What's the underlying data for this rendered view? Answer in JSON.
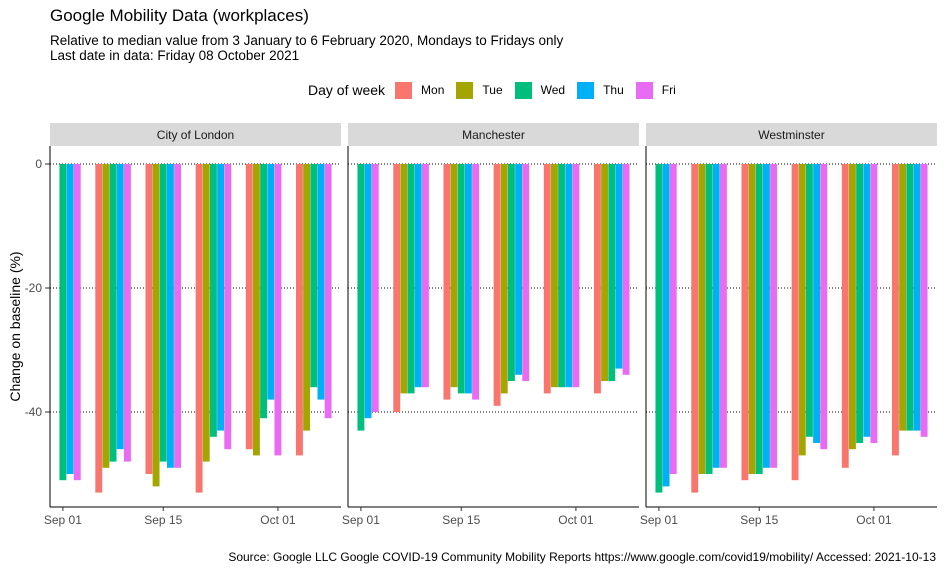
{
  "chart_data": {
    "type": "bar",
    "title": "Google Mobility Data (workplaces)",
    "subtitle_line1": "Relative to median value from 3 January to 6 February 2020, Mondays to Fridays only",
    "subtitle_line2": "Last date in data: Friday 08 October 2021",
    "ylabel": "Change on baseline (%)",
    "xlabel": "",
    "ylim": [
      -55,
      1
    ],
    "yticks": [
      0,
      -20,
      -40
    ],
    "ytick_labels": [
      "0",
      "-20",
      "-40"
    ],
    "xticks": [
      {
        "day": 0,
        "label": "Sep 01"
      },
      {
        "day": 14,
        "label": "Sep 15"
      },
      {
        "day": 30,
        "label": "Oct 01"
      }
    ],
    "date_range": {
      "start": "2021-09-01",
      "end": "2021-10-08"
    },
    "legend": {
      "title": "Day of week",
      "placement": "top",
      "entries": [
        {
          "key": "Mon",
          "label": "Mon",
          "color": "#F8766D"
        },
        {
          "key": "Tue",
          "label": "Tue",
          "color": "#A3A500"
        },
        {
          "key": "Wed",
          "label": "Wed",
          "color": "#00BF7D"
        },
        {
          "key": "Thu",
          "label": "Thu",
          "color": "#00B0F6"
        },
        {
          "key": "Fri",
          "label": "Fri",
          "color": "#E76BF3"
        }
      ]
    },
    "facets": [
      {
        "name": "City of London",
        "points": [
          {
            "day": 0,
            "dow": "Wed",
            "value": -51
          },
          {
            "day": 1,
            "dow": "Thu",
            "value": -50
          },
          {
            "day": 2,
            "dow": "Fri",
            "value": -51
          },
          {
            "day": 5,
            "dow": "Mon",
            "value": -53
          },
          {
            "day": 6,
            "dow": "Tue",
            "value": -49
          },
          {
            "day": 7,
            "dow": "Wed",
            "value": -48
          },
          {
            "day": 8,
            "dow": "Thu",
            "value": -46
          },
          {
            "day": 9,
            "dow": "Fri",
            "value": -48
          },
          {
            "day": 12,
            "dow": "Mon",
            "value": -50
          },
          {
            "day": 13,
            "dow": "Tue",
            "value": -52
          },
          {
            "day": 14,
            "dow": "Wed",
            "value": -48
          },
          {
            "day": 15,
            "dow": "Thu",
            "value": -49
          },
          {
            "day": 16,
            "dow": "Fri",
            "value": -49
          },
          {
            "day": 19,
            "dow": "Mon",
            "value": -53
          },
          {
            "day": 20,
            "dow": "Tue",
            "value": -48
          },
          {
            "day": 21,
            "dow": "Wed",
            "value": -44
          },
          {
            "day": 22,
            "dow": "Thu",
            "value": -43
          },
          {
            "day": 23,
            "dow": "Fri",
            "value": -46
          },
          {
            "day": 26,
            "dow": "Mon",
            "value": -46
          },
          {
            "day": 27,
            "dow": "Tue",
            "value": -47
          },
          {
            "day": 28,
            "dow": "Wed",
            "value": -41
          },
          {
            "day": 29,
            "dow": "Thu",
            "value": -38
          },
          {
            "day": 30,
            "dow": "Fri",
            "value": -47
          },
          {
            "day": 33,
            "dow": "Mon",
            "value": -47
          },
          {
            "day": 34,
            "dow": "Tue",
            "value": -43
          },
          {
            "day": 35,
            "dow": "Wed",
            "value": -36
          },
          {
            "day": 36,
            "dow": "Thu",
            "value": -38
          },
          {
            "day": 37,
            "dow": "Fri",
            "value": -41
          }
        ]
      },
      {
        "name": "Manchester",
        "points": [
          {
            "day": 0,
            "dow": "Wed",
            "value": -43
          },
          {
            "day": 1,
            "dow": "Thu",
            "value": -41
          },
          {
            "day": 2,
            "dow": "Fri",
            "value": -40
          },
          {
            "day": 5,
            "dow": "Mon",
            "value": -40
          },
          {
            "day": 6,
            "dow": "Tue",
            "value": -37
          },
          {
            "day": 7,
            "dow": "Wed",
            "value": -37
          },
          {
            "day": 8,
            "dow": "Thu",
            "value": -36
          },
          {
            "day": 9,
            "dow": "Fri",
            "value": -36
          },
          {
            "day": 12,
            "dow": "Mon",
            "value": -38
          },
          {
            "day": 13,
            "dow": "Tue",
            "value": -36
          },
          {
            "day": 14,
            "dow": "Wed",
            "value": -37
          },
          {
            "day": 15,
            "dow": "Thu",
            "value": -37
          },
          {
            "day": 16,
            "dow": "Fri",
            "value": -38
          },
          {
            "day": 19,
            "dow": "Mon",
            "value": -39
          },
          {
            "day": 20,
            "dow": "Tue",
            "value": -37
          },
          {
            "day": 21,
            "dow": "Wed",
            "value": -35
          },
          {
            "day": 22,
            "dow": "Thu",
            "value": -34
          },
          {
            "day": 23,
            "dow": "Fri",
            "value": -35
          },
          {
            "day": 26,
            "dow": "Mon",
            "value": -37
          },
          {
            "day": 27,
            "dow": "Tue",
            "value": -36
          },
          {
            "day": 28,
            "dow": "Wed",
            "value": -36
          },
          {
            "day": 29,
            "dow": "Thu",
            "value": -36
          },
          {
            "day": 30,
            "dow": "Fri",
            "value": -36
          },
          {
            "day": 33,
            "dow": "Mon",
            "value": -37
          },
          {
            "day": 34,
            "dow": "Tue",
            "value": -35
          },
          {
            "day": 35,
            "dow": "Wed",
            "value": -35
          },
          {
            "day": 36,
            "dow": "Thu",
            "value": -33
          },
          {
            "day": 37,
            "dow": "Fri",
            "value": -34
          }
        ]
      },
      {
        "name": "Westminster",
        "points": [
          {
            "day": 0,
            "dow": "Wed",
            "value": -53
          },
          {
            "day": 1,
            "dow": "Thu",
            "value": -52
          },
          {
            "day": 2,
            "dow": "Fri",
            "value": -50
          },
          {
            "day": 5,
            "dow": "Mon",
            "value": -53
          },
          {
            "day": 6,
            "dow": "Tue",
            "value": -50
          },
          {
            "day": 7,
            "dow": "Wed",
            "value": -50
          },
          {
            "day": 8,
            "dow": "Thu",
            "value": -49
          },
          {
            "day": 9,
            "dow": "Fri",
            "value": -49
          },
          {
            "day": 12,
            "dow": "Mon",
            "value": -51
          },
          {
            "day": 13,
            "dow": "Tue",
            "value": -50
          },
          {
            "day": 14,
            "dow": "Wed",
            "value": -50
          },
          {
            "day": 15,
            "dow": "Thu",
            "value": -49
          },
          {
            "day": 16,
            "dow": "Fri",
            "value": -49
          },
          {
            "day": 19,
            "dow": "Mon",
            "value": -51
          },
          {
            "day": 20,
            "dow": "Tue",
            "value": -47
          },
          {
            "day": 21,
            "dow": "Wed",
            "value": -44
          },
          {
            "day": 22,
            "dow": "Thu",
            "value": -45
          },
          {
            "day": 23,
            "dow": "Fri",
            "value": -46
          },
          {
            "day": 26,
            "dow": "Mon",
            "value": -49
          },
          {
            "day": 27,
            "dow": "Tue",
            "value": -46
          },
          {
            "day": 28,
            "dow": "Wed",
            "value": -45
          },
          {
            "day": 29,
            "dow": "Thu",
            "value": -44
          },
          {
            "day": 30,
            "dow": "Fri",
            "value": -45
          },
          {
            "day": 33,
            "dow": "Mon",
            "value": -47
          },
          {
            "day": 34,
            "dow": "Tue",
            "value": -43
          },
          {
            "day": 35,
            "dow": "Wed",
            "value": -43
          },
          {
            "day": 36,
            "dow": "Thu",
            "value": -43
          },
          {
            "day": 37,
            "dow": "Fri",
            "value": -44
          }
        ]
      }
    ],
    "caption": "Source: Google LLC Google COVID-19 Community Mobility Reports https://www.google.com/covid19/mobility/ Accessed: 2021-10-13"
  }
}
